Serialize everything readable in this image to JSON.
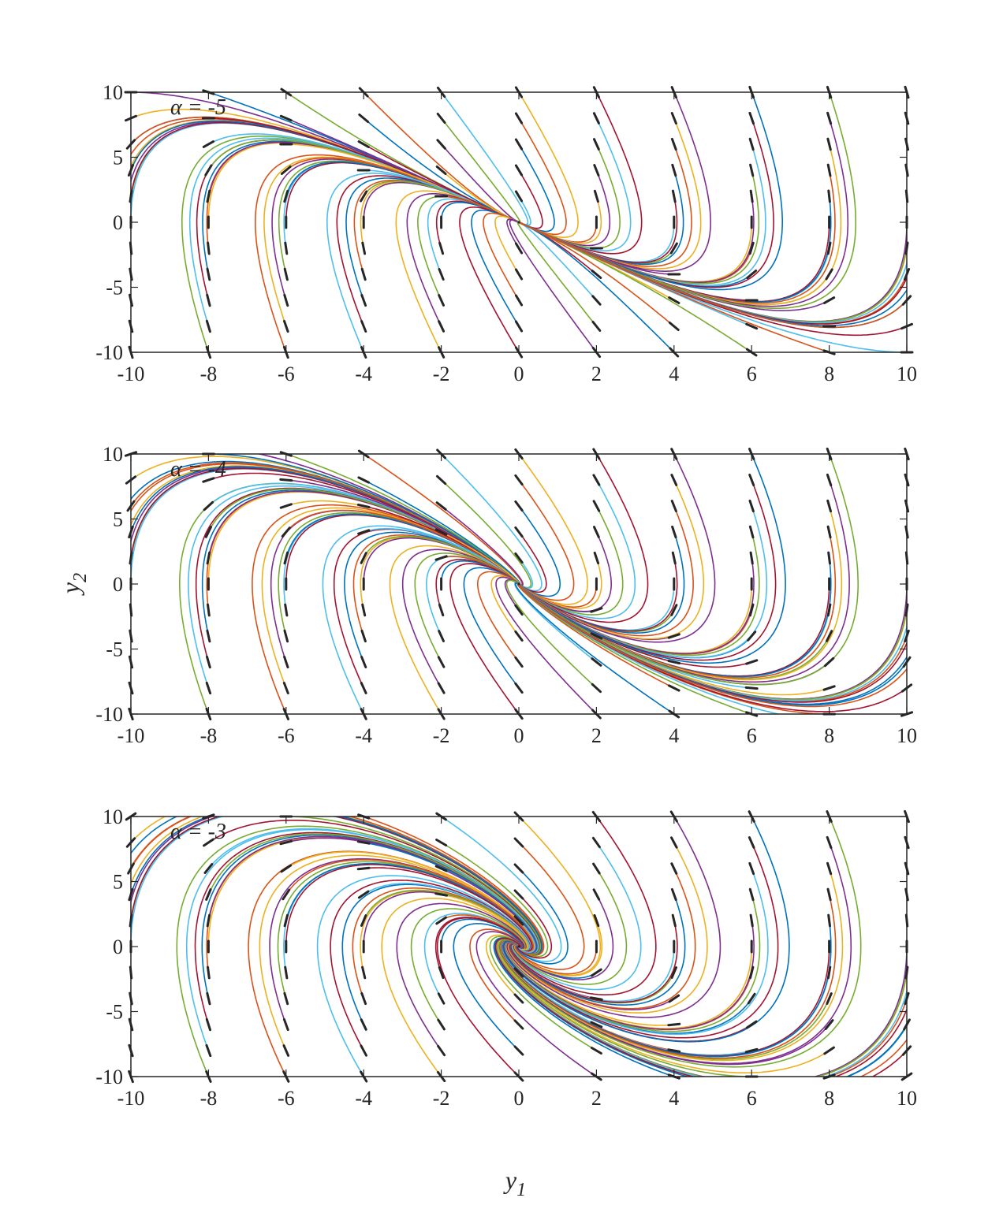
{
  "figure": {
    "xlabel": {
      "base": "y",
      "sub": "1"
    },
    "ylabel": {
      "base": "y",
      "sub": "2"
    }
  },
  "colors": [
    "#0072BD",
    "#D95319",
    "#EDB120",
    "#7E2F8E",
    "#77AC30",
    "#4DBEEE",
    "#A2142F"
  ],
  "arrow_color": "#262626",
  "chart_data": [
    {
      "type": "phase-portrait",
      "label": "α = -5",
      "alpha": -5,
      "xlim": [
        -10,
        10
      ],
      "ylim": [
        -10,
        10
      ],
      "xticks": [
        "-10",
        "-8",
        "-6",
        "-4",
        "-2",
        "0",
        "2",
        "4",
        "6",
        "8",
        "10"
      ],
      "yticks": [
        "10",
        "5",
        "0",
        "-5",
        "-10"
      ],
      "grid": false
    },
    {
      "type": "phase-portrait",
      "label": "α = -4",
      "alpha": -4,
      "xlim": [
        -10,
        10
      ],
      "ylim": [
        -10,
        10
      ],
      "xticks": [
        "-10",
        "-8",
        "-6",
        "-4",
        "-2",
        "0",
        "2",
        "4",
        "6",
        "8",
        "10"
      ],
      "yticks": [
        "10",
        "5",
        "0",
        "-5",
        "-10"
      ],
      "grid": false
    },
    {
      "type": "phase-portrait",
      "label": "α = -3",
      "alpha": -3,
      "xlim": [
        -10,
        10
      ],
      "ylim": [
        -10,
        10
      ],
      "xticks": [
        "-10",
        "-8",
        "-6",
        "-4",
        "-2",
        "0",
        "2",
        "4",
        "6",
        "8",
        "10"
      ],
      "yticks": [
        "10",
        "5",
        "0",
        "-5",
        "-10"
      ],
      "grid": false
    }
  ]
}
